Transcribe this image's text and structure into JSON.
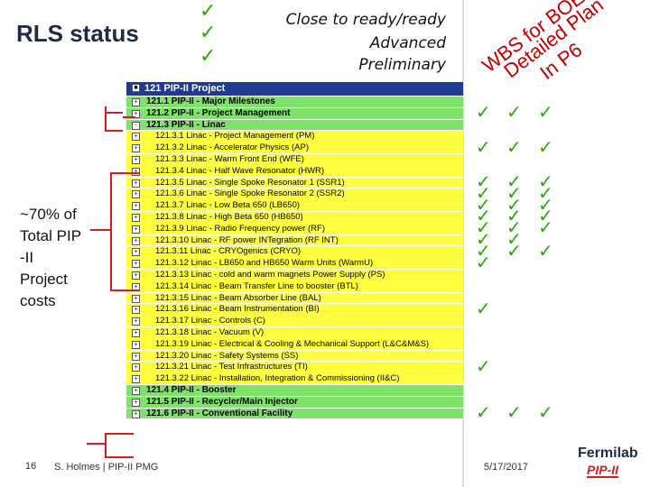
{
  "title": "RLS status",
  "legend": [
    {
      "check": "✓",
      "label": "Close to ready/ready"
    },
    {
      "check": "✓",
      "label": "Advanced"
    },
    {
      "check": "✓",
      "label": "Preliminary"
    }
  ],
  "column_headers": [
    "WBS for BOE",
    "Detailed Plan",
    "In P6"
  ],
  "costs_note": "~70% of\nTotal PIP\n-II\nProject\ncosts",
  "rows": [
    {
      "label": "121  PIP-II Project",
      "expander": "■",
      "level": "top"
    },
    {
      "label": "121.1  PIP-II - Major Milestones",
      "expander": "+",
      "level": "green"
    },
    {
      "label": "121.2  PIP-II - Project Management",
      "expander": "+",
      "level": "green"
    },
    {
      "label": "121.3  PIP-II - Linac",
      "expander": "-",
      "level": "green"
    },
    {
      "label": "121.3.1  Linac - Project Management (PM)",
      "expander": "+",
      "level": "sub"
    },
    {
      "label": "121.3.2  Linac - Accelerator Physics (AP)",
      "expander": "+",
      "level": "sub"
    },
    {
      "label": "121.3.3  Linac - Warm Front End (WFE)",
      "expander": "+",
      "level": "sub"
    },
    {
      "label": "121.3.4  Linac - Half Wave Resonator (HWR)",
      "expander": "+",
      "level": "sub"
    },
    {
      "label": "121.3.5  Linac - Single Spoke Resonator 1 (SSR1)",
      "expander": "+",
      "level": "sub"
    },
    {
      "label": "121.3.6  Linac - Single Spoke Resonator 2 (SSR2)",
      "expander": "+",
      "level": "sub"
    },
    {
      "label": "121.3.7  Linac - Low Beta 650 (LB650)",
      "expander": "+",
      "level": "sub"
    },
    {
      "label": "121.3.8  Linac - High Beta 650 (HB650)",
      "expander": "+",
      "level": "sub"
    },
    {
      "label": "121.3.9  Linac - Radio Frequency power (RF)",
      "expander": "+",
      "level": "sub"
    },
    {
      "label": "121.3.10  Linac - RF power INTegration (RF INT)",
      "expander": "+",
      "level": "sub"
    },
    {
      "label": "121.3.11  Linac - CRYOgenics (CRYO)",
      "expander": "+",
      "level": "sub"
    },
    {
      "label": "121.3.12  Linac - LB650 and HB650 Warm Units (WarmU)",
      "expander": "+",
      "level": "sub"
    },
    {
      "label": "121.3.13  Linac - cold and warm magnets Power Supply (PS)",
      "expander": "+",
      "level": "sub"
    },
    {
      "label": "121.3.14  Linac - Beam Transfer Line to booster (BTL)",
      "expander": "+",
      "level": "sub"
    },
    {
      "label": "121.3.15  Linac - Beam Absorber Line (BAL)",
      "expander": "+",
      "level": "sub"
    },
    {
      "label": "121.3.16  Linac - Beam Instrumentation (BI)",
      "expander": "+",
      "level": "sub"
    },
    {
      "label": "121.3.17  Linac - Controls (C)",
      "expander": "+",
      "level": "sub"
    },
    {
      "label": "121.3.18  Linac - Vacuum (V)",
      "expander": "+",
      "level": "sub"
    },
    {
      "label": "121.3.19  Linac - Electrical & Cooling & Mechanical Support (L&C&M&S)",
      "expander": "+",
      "level": "sub"
    },
    {
      "label": "121.3.20  Linac - Safety Systems (SS)",
      "expander": "+",
      "level": "sub"
    },
    {
      "label": "121.3.21  Linac - Test Infrastructures (TI)",
      "expander": "+",
      "level": "sub"
    },
    {
      "label": "121.3.22  Linac - Installation, Integration & Commissioning (II&C)",
      "expander": "+",
      "level": "sub"
    },
    {
      "label": "121.4  PIP-II - Booster",
      "expander": "+",
      "level": "green"
    },
    {
      "label": "121.5  PIP-II - Recycler/Main Injector",
      "expander": "+",
      "level": "green"
    },
    {
      "label": "121.6  PIP-II - Conventional Facility",
      "expander": "+",
      "level": "green"
    }
  ],
  "checks": [
    {
      "row": 2,
      "cols": [
        0,
        1,
        2
      ]
    },
    {
      "row": 5,
      "cols": [
        0,
        1,
        2
      ]
    },
    {
      "row": 8,
      "cols": [
        0,
        1,
        2
      ]
    },
    {
      "row": 9,
      "cols": [
        0,
        1,
        2
      ]
    },
    {
      "row": 10,
      "cols": [
        0,
        1,
        2
      ]
    },
    {
      "row": 11,
      "cols": [
        0,
        1,
        2
      ]
    },
    {
      "row": 12,
      "cols": [
        0,
        1,
        2
      ]
    },
    {
      "row": 13,
      "cols": [
        0,
        1
      ]
    },
    {
      "row": 14,
      "cols": [
        0,
        1,
        2
      ]
    },
    {
      "row": 15,
      "cols": [
        0
      ]
    },
    {
      "row": 19,
      "cols": [
        0
      ]
    },
    {
      "row": 24,
      "cols": [
        0
      ]
    },
    {
      "row": 28,
      "cols": [
        0,
        1,
        2
      ]
    }
  ],
  "check_glyph": "✓",
  "colors": {
    "check": "#22aa00",
    "bracket": "#d02020",
    "header_blue": "#1f3a93",
    "row_green": "#7fe26a",
    "row_yellow": "#ffff40",
    "rotated_text": "#c00000"
  },
  "footer": {
    "page_number": "16",
    "author": "S. Holmes | PIP-II PMG",
    "date": "5/17/2017",
    "logo_text": "Fermilab",
    "logo_sub": "PIP-II"
  }
}
